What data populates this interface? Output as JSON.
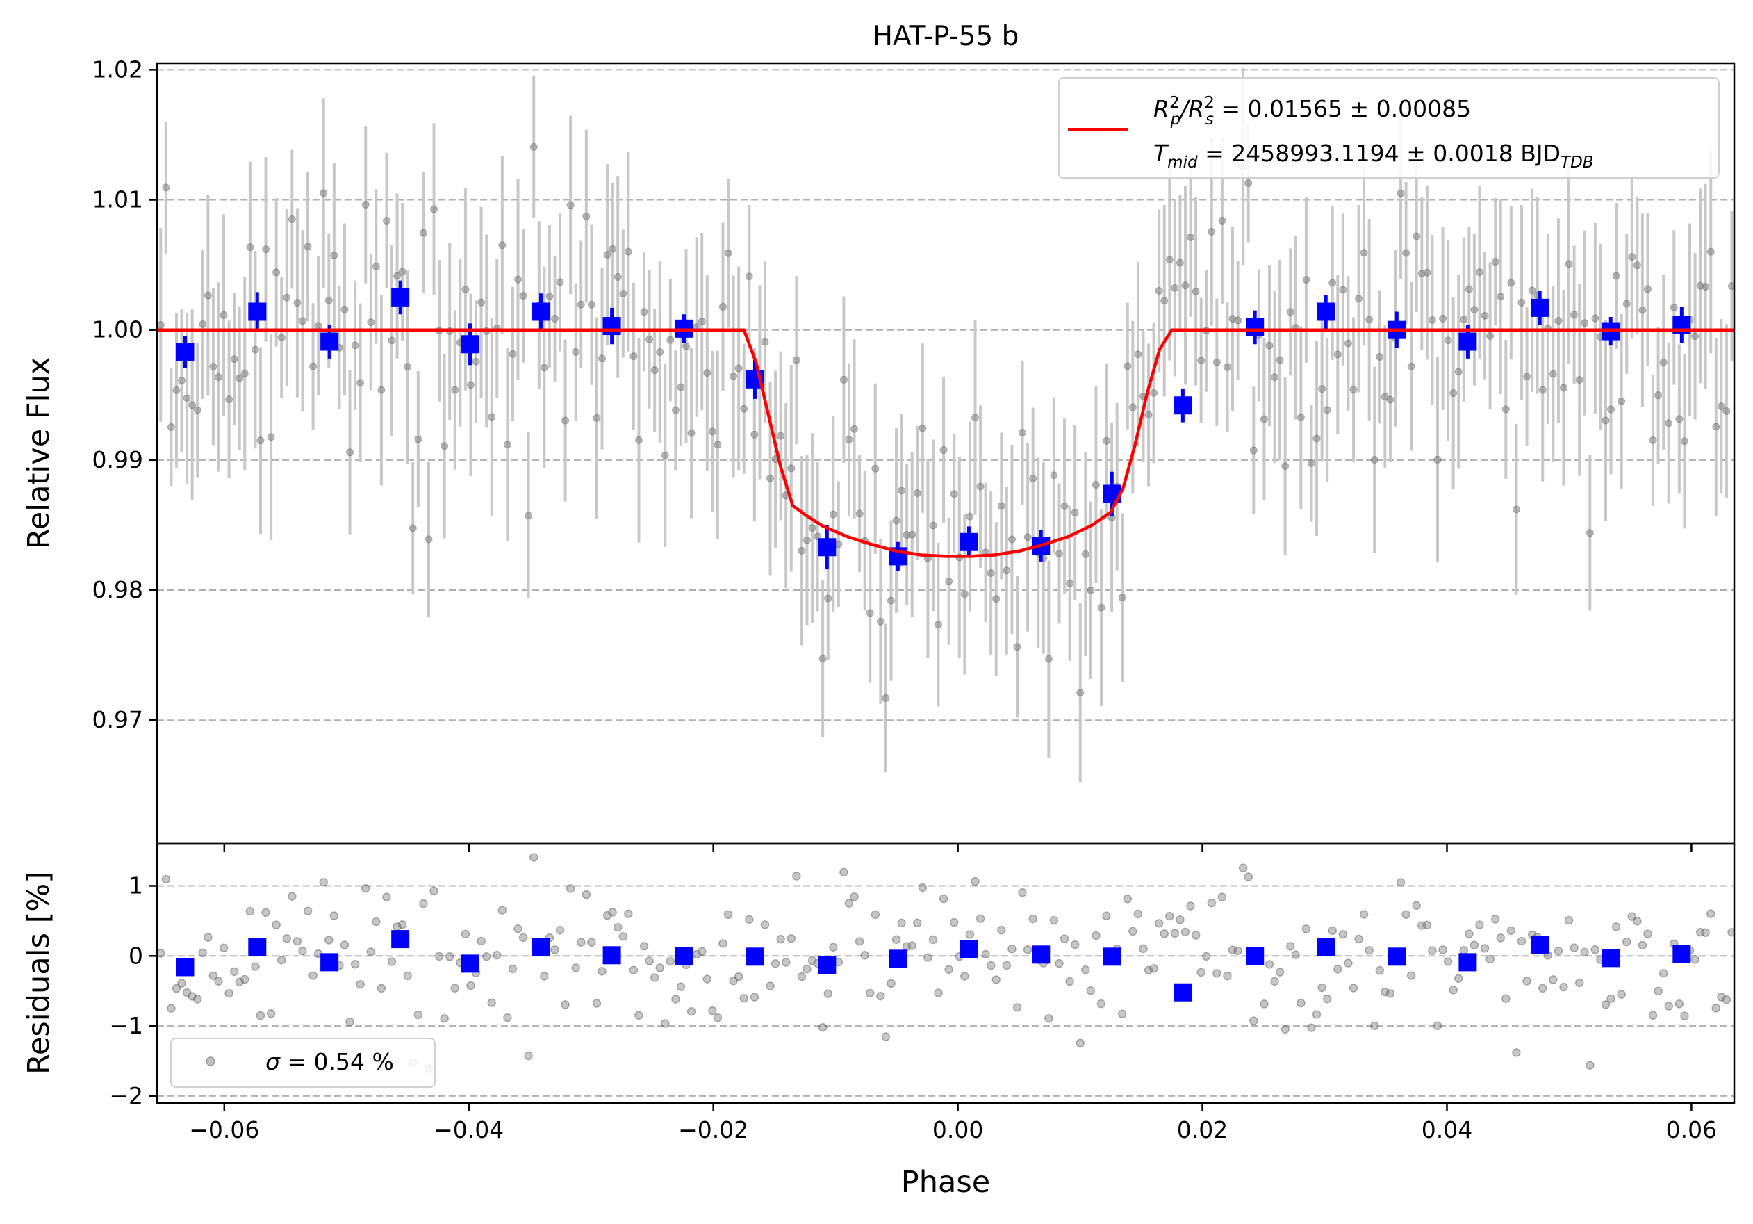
{
  "chart_data": [
    {
      "panel": "main",
      "type": "scatter",
      "title": "HAT-P-55 b",
      "xlabel": "",
      "ylabel": "Relative Flux",
      "xlim": [
        -0.0655,
        0.0635
      ],
      "ylim": [
        0.9605,
        1.0205
      ],
      "xticks": [
        -0.06,
        -0.04,
        -0.02,
        0.0,
        0.02,
        0.04,
        0.06
      ],
      "xtick_labels": [
        "",
        "",
        "",
        "",
        "",
        "",
        ""
      ],
      "yticks": [
        0.97,
        0.98,
        0.99,
        1.0,
        1.01,
        1.02
      ],
      "ytick_labels": [
        "0.97",
        "0.98",
        "0.99",
        "1.00",
        "1.01",
        "1.02"
      ],
      "grid": "y-dashed",
      "model": {
        "name": "transit model",
        "color": "#ff0000",
        "x": [
          -0.0655,
          -0.0175,
          -0.0165,
          -0.0155,
          -0.0145,
          -0.0135,
          -0.0125,
          -0.011,
          -0.009,
          -0.007,
          -0.005,
          -0.003,
          -0.001,
          0.0,
          0.001,
          0.003,
          0.005,
          0.007,
          0.009,
          0.011,
          0.0125,
          0.0135,
          0.0145,
          0.0155,
          0.0165,
          0.0175,
          0.0635
        ],
        "y": [
          1.0,
          1.0,
          0.9975,
          0.9935,
          0.9895,
          0.9865,
          0.9858,
          0.9849,
          0.9841,
          0.9835,
          0.983,
          0.9827,
          0.9826,
          0.9826,
          0.9826,
          0.9827,
          0.983,
          0.9835,
          0.9841,
          0.985,
          0.986,
          0.9878,
          0.9912,
          0.9952,
          0.9985,
          1.0,
          1.0
        ]
      },
      "binned": {
        "color": "#0000ff",
        "x": [
          -0.0632,
          -0.0573,
          -0.0514,
          -0.0456,
          -0.0399,
          -0.0341,
          -0.0283,
          -0.0224,
          -0.0166,
          -0.0107,
          -0.0049,
          0.0009,
          0.0068,
          0.0126,
          0.0184,
          0.0243,
          0.0301,
          0.0359,
          0.0417,
          0.0476,
          0.0534,
          0.0592
        ],
        "y": [
          0.9983,
          1.0014,
          0.9991,
          1.0025,
          0.9989,
          1.0014,
          1.0003,
          1.0001,
          0.9962,
          0.9833,
          0.9826,
          0.9837,
          0.9834,
          0.9874,
          0.9942,
          1.0002,
          1.0014,
          1.0,
          0.9991,
          1.0017,
          0.9999,
          1.0004
        ],
        "yerr": [
          0.0012,
          0.0015,
          0.0013,
          0.0013,
          0.0016,
          0.0014,
          0.0014,
          0.0011,
          0.0015,
          0.0017,
          0.0011,
          0.0012,
          0.0012,
          0.0017,
          0.0013,
          0.0013,
          0.0013,
          0.0014,
          0.0013,
          0.0013,
          0.0011,
          0.0014
        ]
      },
      "legend": {
        "placement": "top-right",
        "entries": [
          {
            "line1": "R",
            "p1": "2",
            "s1": "p",
            "mid": "/R",
            "p2": "2",
            "s2": "s",
            "rest": " = 0.01565 ± 0.00085"
          },
          {
            "line2": "T",
            "s3": "mid",
            "rest2": " = 2458993.1194 ± 0.0018 BJD",
            "s4": "TDB"
          }
        ]
      }
    },
    {
      "panel": "residuals",
      "type": "scatter",
      "xlabel": "Phase",
      "ylabel": "Residuals [%]",
      "xlim": [
        -0.0655,
        0.0635
      ],
      "ylim": [
        -2.1,
        1.6
      ],
      "xticks": [
        -0.06,
        -0.04,
        -0.02,
        0.0,
        0.02,
        0.04,
        0.06
      ],
      "xtick_labels": [
        "−0.06",
        "−0.04",
        "−0.02",
        "0.00",
        "0.02",
        "0.04",
        "0.06"
      ],
      "yticks": [
        -2,
        -1,
        0,
        1
      ],
      "ytick_labels": [
        "−2",
        "−1",
        "0",
        "1"
      ],
      "grid": "y-dashed",
      "binned": {
        "color": "#0000ff",
        "x": [
          -0.0632,
          -0.0573,
          -0.0514,
          -0.0456,
          -0.0399,
          -0.0341,
          -0.0283,
          -0.0224,
          -0.0166,
          -0.0107,
          -0.0049,
          0.0009,
          0.0068,
          0.0126,
          0.0184,
          0.0243,
          0.0301,
          0.0359,
          0.0417,
          0.0476,
          0.0534,
          0.0592
        ],
        "y": [
          -0.16,
          0.13,
          -0.09,
          0.24,
          -0.11,
          0.13,
          0.01,
          0.0,
          -0.01,
          -0.13,
          -0.04,
          0.1,
          0.02,
          -0.01,
          -0.52,
          0.0,
          0.13,
          -0.01,
          -0.09,
          0.16,
          -0.03,
          0.03
        ]
      },
      "legend": {
        "placement": "bottom-left",
        "sigma": "σ",
        "text": " = 0.54 %"
      }
    }
  ],
  "colors": {
    "raw_points": "#808080",
    "raw_errorbars": "#c8c8c8",
    "grid": "#b0b0b0"
  }
}
